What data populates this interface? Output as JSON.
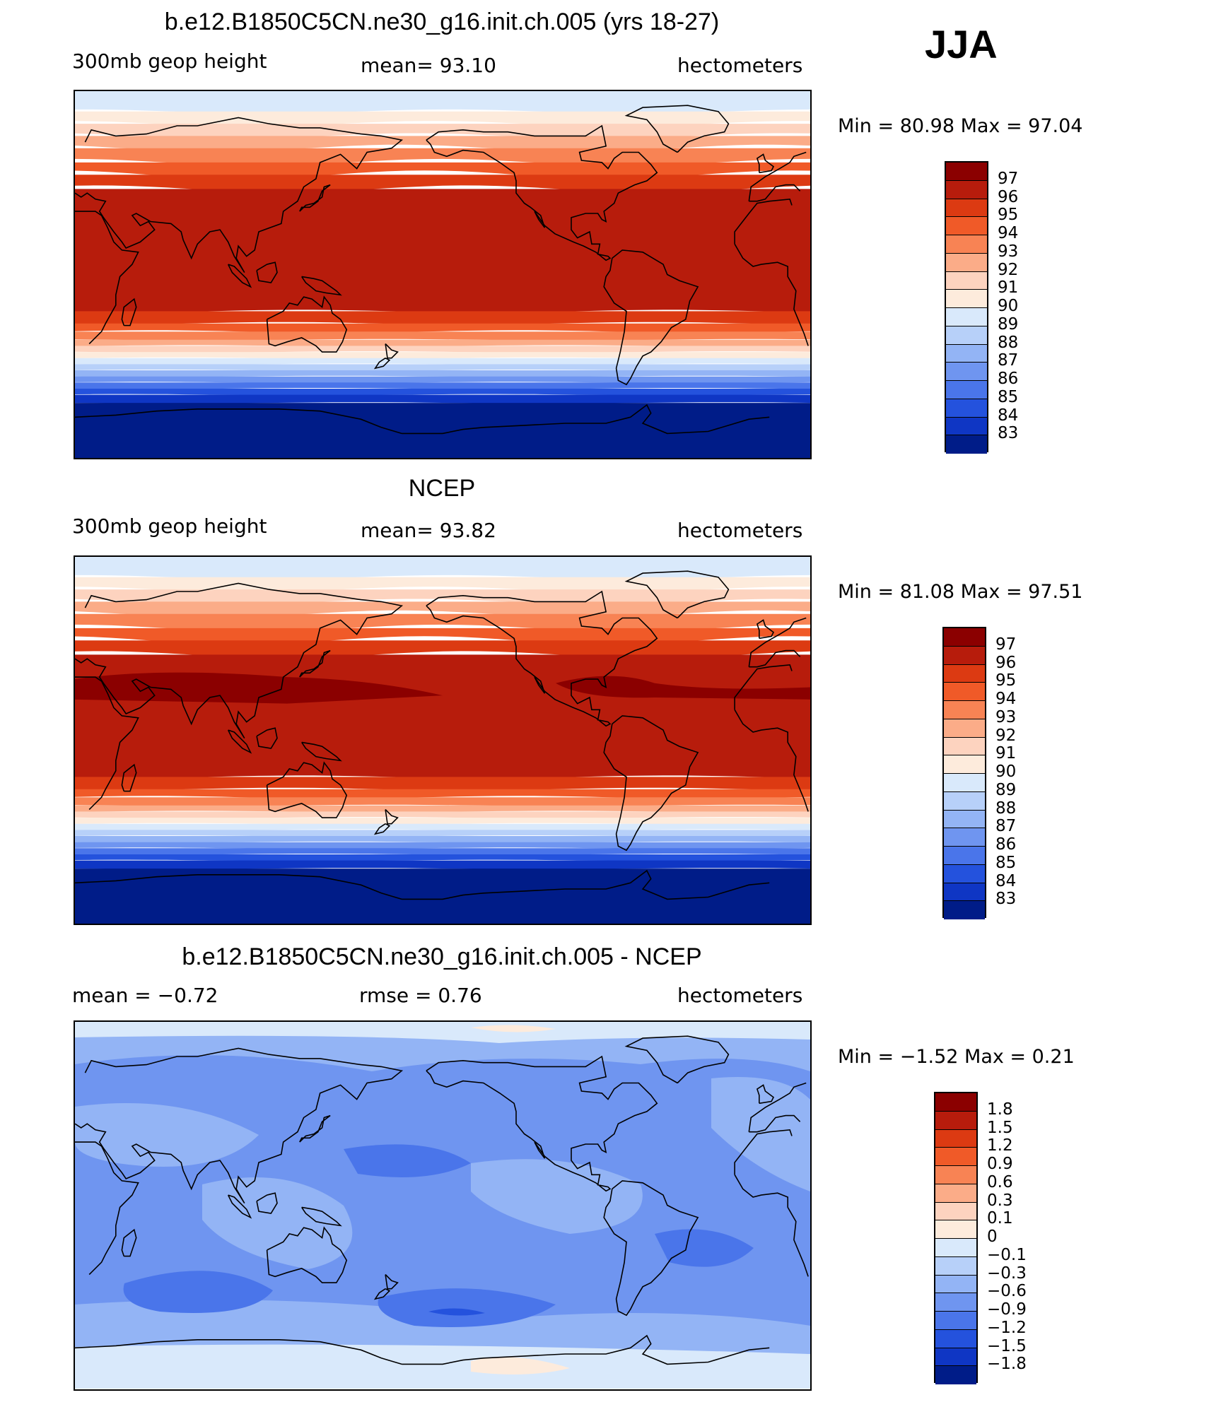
{
  "season": "JJA",
  "units": "hectometers",
  "panels": [
    {
      "title": "b.e12.B1850C5CN.ne30_g16.init.ch.005 (yrs 18-27)",
      "left_label": "300mb  geop  height",
      "center_label": "mean=   93.10",
      "right_label": "hectometers",
      "minmax": "Min  =    80.98  Max  =    97.04",
      "colorbar": {
        "levels": [
          "97",
          "96",
          "95",
          "94",
          "93",
          "92",
          "91",
          "90",
          "89",
          "88",
          "87",
          "86",
          "85",
          "84",
          "83"
        ],
        "colors": [
          "#8b0000",
          "#b71c0c",
          "#dc3a12",
          "#f05a28",
          "#f88354",
          "#fbac88",
          "#fdd3bf",
          "#fdebdc",
          "#d9e9fb",
          "#b7d0f9",
          "#93b4f5",
          "#6f95f0",
          "#4a75ea",
          "#2452dd",
          "#0f36c4",
          "#001c88"
        ]
      }
    },
    {
      "title": "NCEP",
      "left_label": "300mb  geop  height",
      "center_label": "mean=   93.82",
      "right_label": "hectometers",
      "minmax": "Min  =    81.08  Max  =    97.51",
      "colorbar": {
        "levels": [
          "97",
          "96",
          "95",
          "94",
          "93",
          "92",
          "91",
          "90",
          "89",
          "88",
          "87",
          "86",
          "85",
          "84",
          "83"
        ],
        "colors": [
          "#8b0000",
          "#b71c0c",
          "#dc3a12",
          "#f05a28",
          "#f88354",
          "#fbac88",
          "#fdd3bf",
          "#fdebdc",
          "#d9e9fb",
          "#b7d0f9",
          "#93b4f5",
          "#6f95f0",
          "#4a75ea",
          "#2452dd",
          "#0f36c4",
          "#001c88"
        ]
      }
    },
    {
      "title": "b.e12.B1850C5CN.ne30_g16.init.ch.005 - NCEP",
      "left_label": "mean  =    −0.72",
      "center_label": "rmse  =     0.76",
      "right_label": "hectometers",
      "minmax": "Min  =   −1.52  Max  =     0.21",
      "colorbar": {
        "levels": [
          "1.8",
          "1.5",
          "1.2",
          "0.9",
          "0.6",
          "0.3",
          "0.1",
          "0",
          "−0.1",
          "−0.3",
          "−0.6",
          "−0.9",
          "−1.2",
          "−1.5",
          "−1.8"
        ],
        "colors": [
          "#8b0000",
          "#b71c0c",
          "#dc3a12",
          "#f05a28",
          "#f88354",
          "#fbac88",
          "#fdd3bf",
          "#fdebdc",
          "#d9e9fb",
          "#b7d0f9",
          "#93b4f5",
          "#6f95f0",
          "#4a75ea",
          "#2452dd",
          "#0f36c4",
          "#001c88"
        ]
      }
    }
  ]
}
